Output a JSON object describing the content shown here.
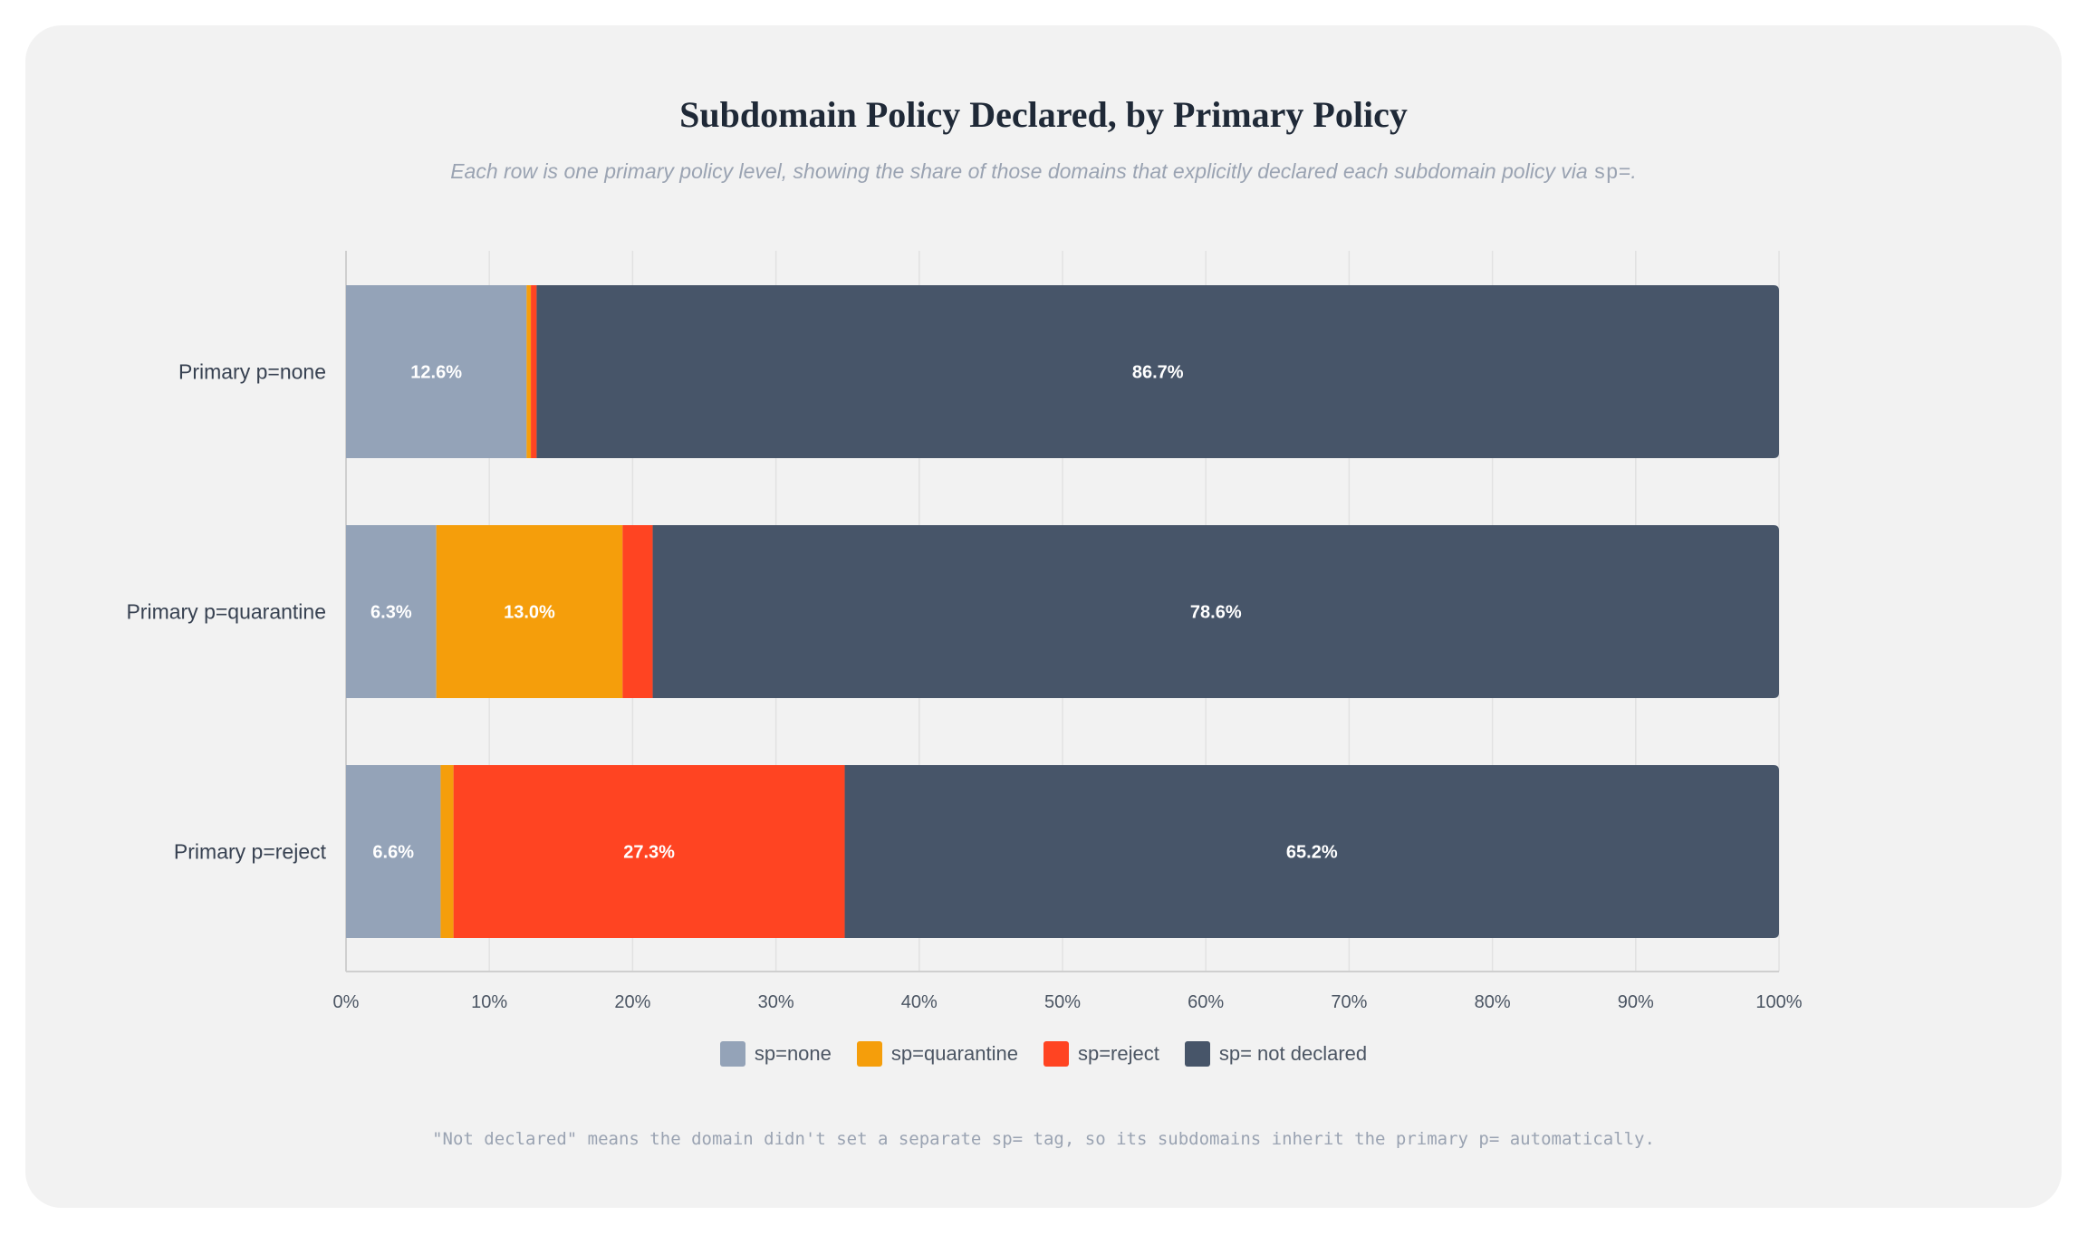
{
  "header": {
    "title": "Subdomain Policy Declared, by Primary Policy",
    "subtitle_text": "Each row is one primary policy level, showing the share of those domains that explicitly declared each subdomain policy via ",
    "subtitle_code": "sp=",
    "subtitle_end": "."
  },
  "footnote": "\"Not declared\" means the domain didn't set a separate sp= tag, so its subdomains inherit the primary p= automatically.",
  "chart_data": {
    "type": "bar",
    "orientation": "horizontal",
    "stacked": true,
    "categories": [
      "Primary p=none",
      "Primary p=quarantine",
      "Primary p=reject"
    ],
    "series": [
      {
        "name": "sp=none",
        "color": "#94a3b8",
        "values": [
          12.6,
          6.3,
          6.6
        ]
      },
      {
        "name": "sp=quarantine",
        "color": "#f59e0b",
        "values": [
          0.3,
          13.0,
          0.9
        ]
      },
      {
        "name": "sp=reject",
        "color": "#ff4422",
        "values": [
          0.4,
          2.1,
          27.3
        ]
      },
      {
        "name": "sp= not declared",
        "color": "#475569",
        "values": [
          86.7,
          78.6,
          65.2
        ]
      }
    ],
    "xlim": [
      0,
      100
    ],
    "x_ticks": [
      "0%",
      "10%",
      "20%",
      "30%",
      "40%",
      "50%",
      "60%",
      "70%",
      "80%",
      "90%",
      "100%"
    ],
    "data_labels": [
      [
        "12.6%",
        "",
        "",
        "86.7%"
      ],
      [
        "6.3%",
        "13.0%",
        "",
        "78.6%"
      ],
      [
        "6.6%",
        "",
        "27.3%",
        "65.2%"
      ]
    ],
    "grid": "vertical",
    "legend_position": "bottom"
  }
}
